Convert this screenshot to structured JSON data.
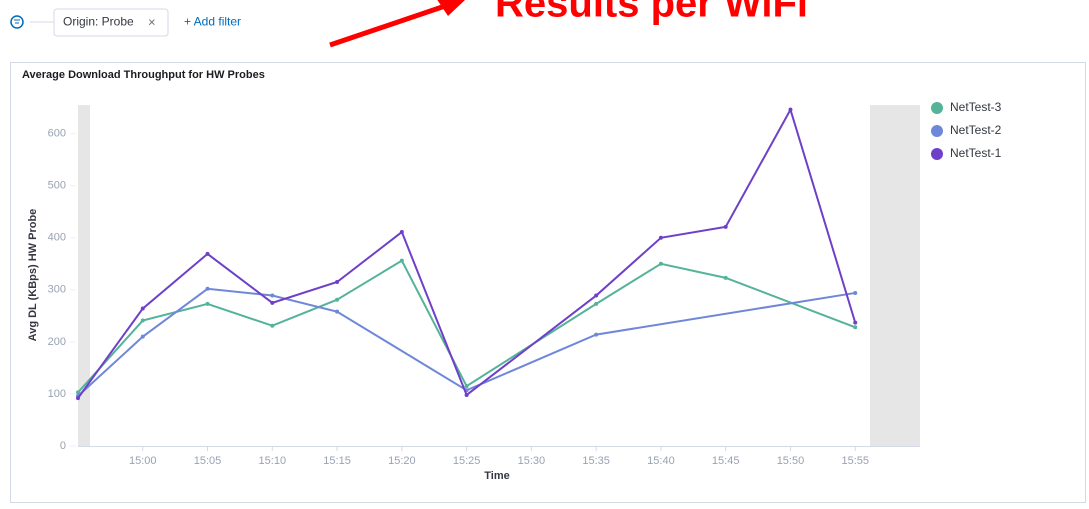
{
  "filter_bar": {
    "filter": "Origin: Probe",
    "remove": "×",
    "add": "+ Add filter"
  },
  "annotation": "Results per WiFi",
  "chart_data": {
    "type": "line",
    "title": "Average Download Throughput for HW Probes",
    "x_label": "Time",
    "y_label": "Avg DL (KBps) HW Probe",
    "xlim": [
      "14:55",
      "16:00"
    ],
    "xticks": [
      "15:00",
      "15:05",
      "15:10",
      "15:15",
      "15:20",
      "15:25",
      "15:30",
      "15:35",
      "15:40",
      "15:45",
      "15:50",
      "15:55"
    ],
    "ylim": [
      0,
      655
    ],
    "yticks": [
      0,
      100,
      200,
      300,
      400,
      500,
      600
    ],
    "legend": "right",
    "series": [
      {
        "name": "NetTest-3",
        "color": "#54b399",
        "x": [
          "14:55",
          "15:00",
          "15:05",
          "15:10",
          "15:15",
          "15:20",
          "15:25",
          "15:35",
          "15:40",
          "15:45",
          "15:55"
        ],
        "values": [
          103,
          241,
          273,
          231,
          281,
          356,
          115,
          273,
          350,
          323,
          228
        ]
      },
      {
        "name": "NetTest-2",
        "color": "#6f87d8",
        "x": [
          "14:55",
          "15:00",
          "15:05",
          "15:10",
          "15:15",
          "15:25",
          "15:35",
          "15:55"
        ],
        "values": [
          96,
          210,
          302,
          289,
          258,
          107,
          214,
          294
        ]
      },
      {
        "name": "NetTest-1",
        "color": "#6e40c9",
        "x": [
          "14:55",
          "15:00",
          "15:05",
          "15:10",
          "15:15",
          "15:20",
          "15:25",
          "15:35",
          "15:40",
          "15:45",
          "15:50",
          "15:55"
        ],
        "values": [
          92,
          264,
          369,
          275,
          315,
          411,
          98,
          289,
          400,
          421,
          646,
          237
        ]
      }
    ]
  }
}
